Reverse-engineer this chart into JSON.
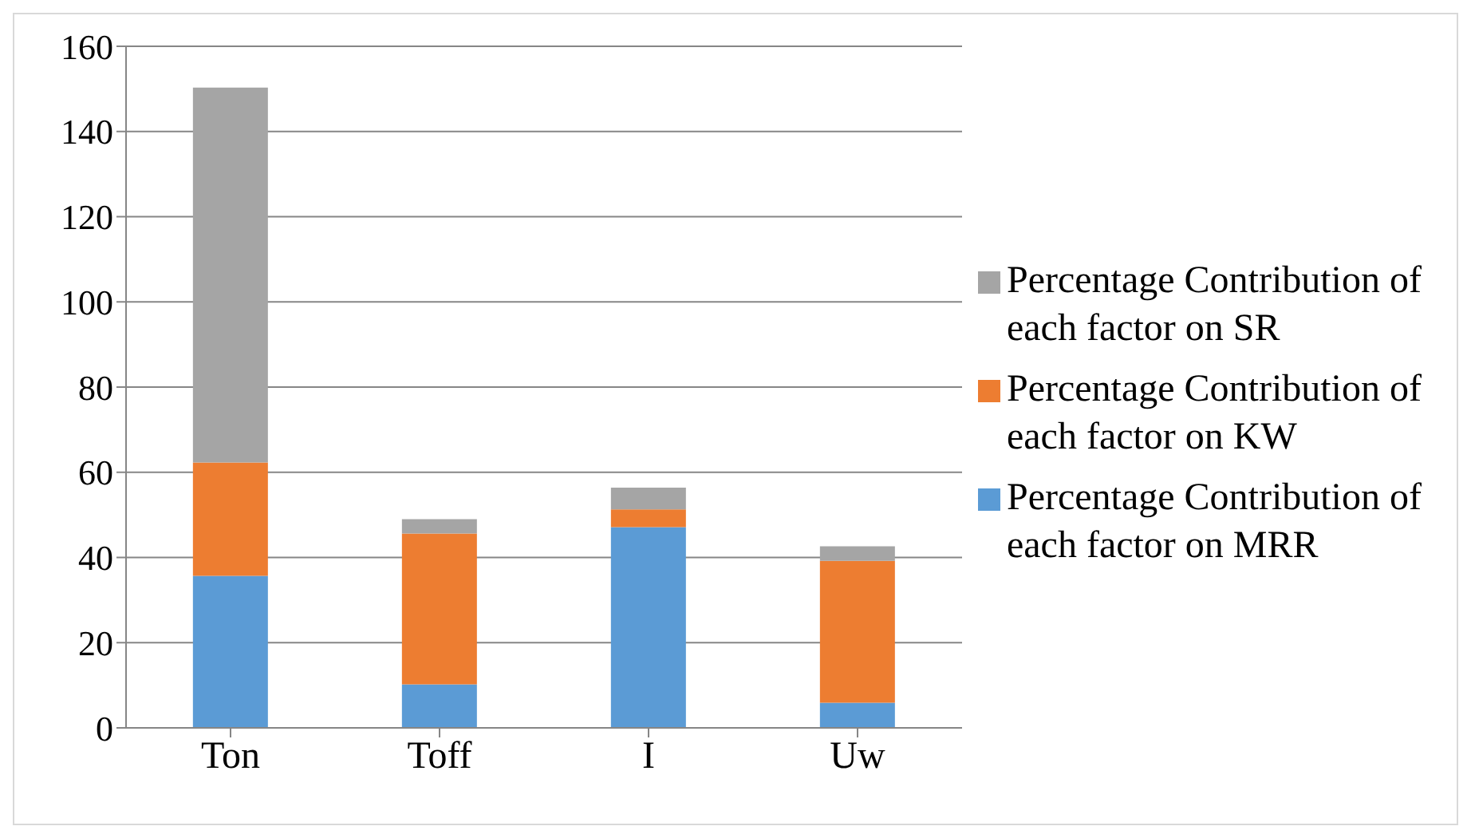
{
  "chart_data": {
    "type": "bar",
    "stacked": true,
    "categories": [
      "Ton",
      "Toff",
      "I",
      "Uw"
    ],
    "series": [
      {
        "name": "Percentage Contribution of each factor on MRR",
        "color": "#5b9bd5",
        "values": [
          35.7,
          10.2,
          47.1,
          5.9
        ]
      },
      {
        "name": "Percentage Contribution of each factor on KW",
        "color": "#ed7d31",
        "values": [
          26.6,
          35.4,
          4.2,
          33.3
        ]
      },
      {
        "name": "Percentage Contribution of each factor on SR",
        "color": "#a5a5a5",
        "values": [
          88.0,
          3.4,
          5.1,
          3.4
        ]
      }
    ],
    "ylim": [
      0,
      160
    ],
    "yticks": [
      0,
      20,
      40,
      60,
      80,
      100,
      120,
      140,
      160
    ],
    "grid": "y",
    "legend": "right"
  }
}
